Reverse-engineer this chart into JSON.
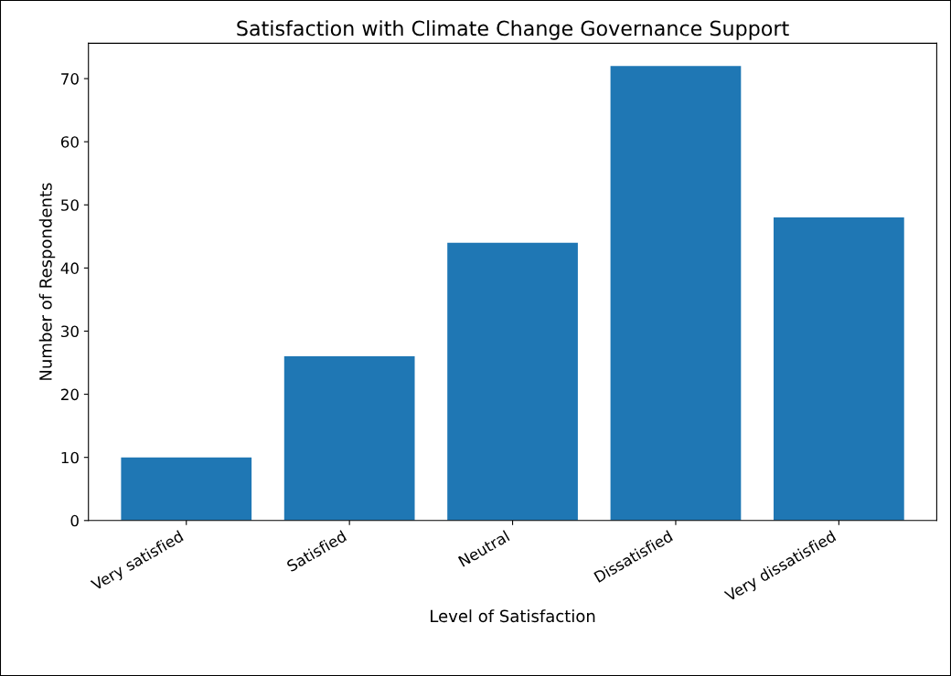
{
  "chart_data": {
    "type": "bar",
    "title": "Satisfaction with Climate Change Governance Support",
    "xlabel": "Level of Satisfaction",
    "ylabel": "Number of Respondents",
    "categories": [
      "Very satisfied",
      "Satisfied",
      "Neutral",
      "Dissatisfied",
      "Very dissatisfied"
    ],
    "values": [
      10,
      26,
      44,
      72,
      48
    ],
    "color": "#1f77b4",
    "ylim": [
      0,
      75.6
    ],
    "yticks": [
      0,
      10,
      20,
      30,
      40,
      50,
      60,
      70
    ],
    "grid": false,
    "legend": false
  }
}
